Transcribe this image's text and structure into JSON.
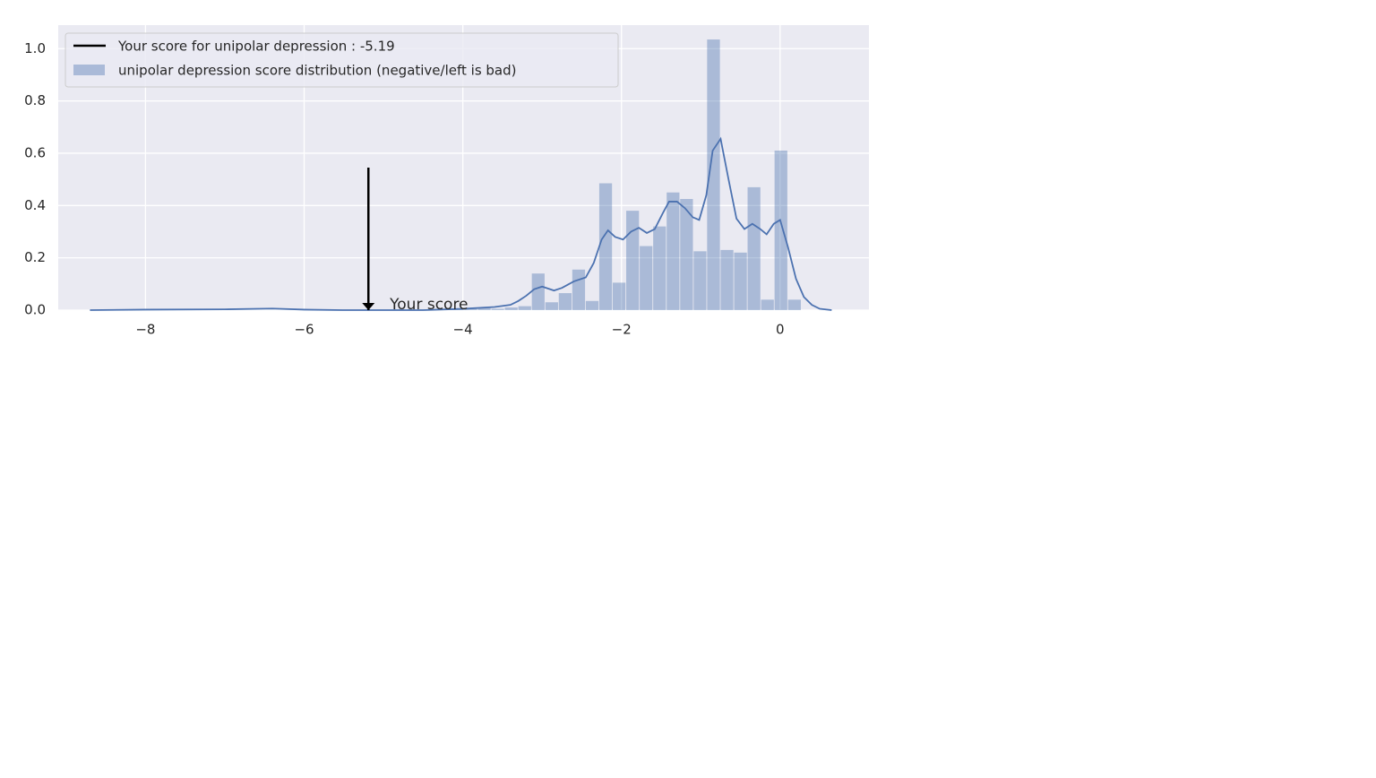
{
  "chart_data": {
    "type": "histogram",
    "bins": [
      -4.15,
      -3.98,
      -3.81,
      -3.64,
      -3.47,
      -3.3,
      -3.13,
      -2.96,
      -2.79,
      -2.62,
      -2.45,
      -2.28,
      -2.11,
      -1.94,
      -1.77,
      -1.6,
      -1.43,
      -1.26,
      -1.09,
      -0.92,
      -0.75,
      -0.58,
      -0.41,
      -0.24,
      -0.07,
      0.1,
      0.27
    ],
    "counts": [
      0.003,
      0.005,
      0.008,
      0.005,
      0.01,
      0.015,
      0.14,
      0.03,
      0.065,
      0.155,
      0.035,
      0.485,
      0.105,
      0.38,
      0.245,
      0.32,
      0.45,
      0.425,
      0.225,
      1.035,
      0.23,
      0.22,
      0.47,
      0.04,
      0.61,
      0.04
    ],
    "name": "unipolar depression  score distribution (negative/left is bad)",
    "color": "#4c72b0",
    "alpha": 0.4,
    "kde": {
      "color": "#4c72b0",
      "x": [
        -8.7,
        -8,
        -7,
        -6.4,
        -6,
        -5.5,
        -5,
        -4.5,
        -4,
        -3.6,
        -3.4,
        -3.3,
        -3.2,
        -3.1,
        -3,
        -2.85,
        -2.75,
        -2.6,
        -2.45,
        -2.35,
        -2.25,
        -2.17,
        -2.08,
        -1.98,
        -1.88,
        -1.78,
        -1.68,
        -1.58,
        -1.48,
        -1.4,
        -1.3,
        -1.2,
        -1.1,
        -1.02,
        -0.93,
        -0.85,
        -0.75,
        -0.65,
        -0.55,
        -0.45,
        -0.35,
        -0.25,
        -0.17,
        -0.08,
        0,
        0.1,
        0.2,
        0.3,
        0.4,
        0.5,
        0.65
      ],
      "y": [
        0,
        0.002,
        0.003,
        0.006,
        0.002,
        0,
        0,
        0,
        0.005,
        0.012,
        0.02,
        0.035,
        0.055,
        0.08,
        0.09,
        0.075,
        0.085,
        0.11,
        0.125,
        0.18,
        0.27,
        0.305,
        0.28,
        0.27,
        0.3,
        0.315,
        0.295,
        0.31,
        0.37,
        0.415,
        0.415,
        0.39,
        0.355,
        0.345,
        0.44,
        0.61,
        0.655,
        0.5,
        0.35,
        0.31,
        0.33,
        0.31,
        0.29,
        0.33,
        0.345,
        0.24,
        0.12,
        0.05,
        0.02,
        0.005,
        0
      ]
    },
    "score": {
      "name": "Your score for unipolar depression : -5.19",
      "x": -5.19,
      "bottom": 0,
      "top": 0.545,
      "color": "#000000"
    },
    "annotation": {
      "text": "Your score",
      "x": -4.92,
      "y": 0.02
    },
    "xlim": [
      -9.1,
      1.12
    ],
    "ylim": [
      0,
      1.09
    ],
    "xticks": [
      {
        "value": -8,
        "label": "−8"
      },
      {
        "value": -6,
        "label": "−6"
      },
      {
        "value": -4,
        "label": "−4"
      },
      {
        "value": -2,
        "label": "−2"
      },
      0
    ],
    "yticks": [
      {
        "value": 0,
        "label": "0.0"
      },
      0.2,
      0.4,
      0.6,
      0.8,
      {
        "value": 1,
        "label": "1.0"
      }
    ],
    "grid": true,
    "legend": "upper left"
  }
}
